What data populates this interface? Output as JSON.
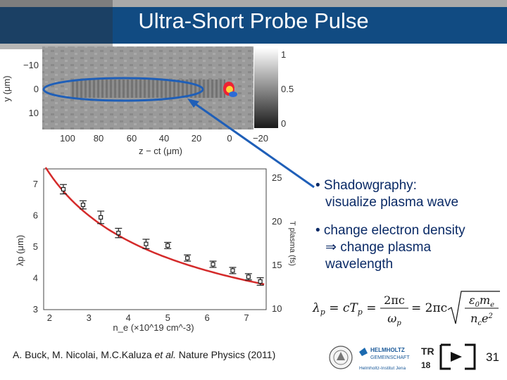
{
  "slide": {
    "title": "Ultra-Short Probe Pulse",
    "page_number": "31",
    "citation": {
      "authors": "A. Buck, M. Nicolai, M.C.Kaluza",
      "et_al": "et al.",
      "journal": "Nature Physics (2011)"
    },
    "bullets": [
      {
        "lines": [
          "• Shadowgraphy:",
          "visualize plasma wave"
        ]
      },
      {
        "lines": [
          "• change electron density",
          "⇒ change plasma",
          "wavelength"
        ]
      }
    ],
    "formula_alt": "λp = cTp = 2πc/ωp = 2πc √(ε0 me / (nc e²))",
    "logos": {
      "helmholtz": "HELMHOLTZ",
      "gemeinschaft": "GEMEINSCHAFT",
      "institut": "Helmholtz-Institut Jena",
      "tr": "TR",
      "num": "18"
    }
  },
  "image_panel": {
    "y_label": "y (μm)",
    "y_ticks": [
      "−10",
      "0",
      "10"
    ],
    "x_ticks": [
      "100",
      "80",
      "60",
      "40",
      "20",
      "0",
      "−20"
    ],
    "x_label": "z − ct (μm)",
    "colorbar_ticks": [
      "1",
      "0.5",
      "0"
    ]
  },
  "chart_data": {
    "type": "scatter",
    "xlabel": "n_e (×10^19 cm^-3)",
    "ylabel": "λp (μm)",
    "ylabel_right": "T plasma (fs)",
    "xlim": [
      1.85,
      7.5
    ],
    "ylim": [
      3,
      7.5
    ],
    "x_ticks": [
      "2",
      "3",
      "4",
      "5",
      "6",
      "7"
    ],
    "y_ticks": [
      "3",
      "4",
      "5",
      "6",
      "7"
    ],
    "y2_ticks": [
      "10",
      "15",
      "20",
      "25"
    ],
    "points": [
      {
        "x": 2.35,
        "y": 6.85,
        "err": 0.15
      },
      {
        "x": 2.85,
        "y": 6.35,
        "err": 0.13
      },
      {
        "x": 3.3,
        "y": 5.95,
        "err": 0.2
      },
      {
        "x": 3.75,
        "y": 5.45,
        "err": 0.15
      },
      {
        "x": 4.45,
        "y": 5.1,
        "err": 0.15
      },
      {
        "x": 5.0,
        "y": 5.05,
        "err": 0.1
      },
      {
        "x": 5.5,
        "y": 4.65,
        "err": 0.1
      },
      {
        "x": 6.15,
        "y": 4.45,
        "err": 0.1
      },
      {
        "x": 6.65,
        "y": 4.25,
        "err": 0.1
      },
      {
        "x": 7.05,
        "y": 4.05,
        "err": 0.1
      },
      {
        "x": 7.35,
        "y": 3.9,
        "err": 0.12
      }
    ],
    "fit": {
      "A": 10.4,
      "power": 0.5,
      "x_start": 1.9,
      "x_end": 7.45
    },
    "colors": {
      "fit": "#d42a2a",
      "points": "#222222"
    }
  }
}
